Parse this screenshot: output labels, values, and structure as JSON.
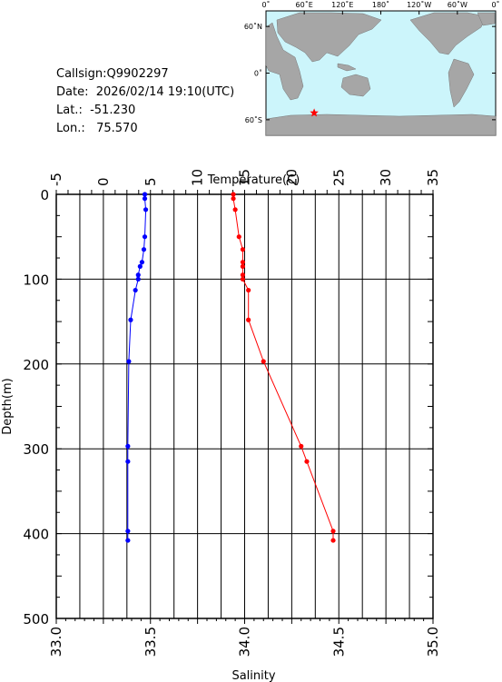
{
  "info": {
    "callsign": "Callsign:Q9902297",
    "date": "Date:  2026/02/14 19:10(UTC)",
    "lat": "Lat.:  -51.230",
    "lon": "Lon.:   75.570"
  },
  "map": {
    "lon_labels": [
      "0˚",
      "60˚E",
      "120˚E",
      "180˚",
      "120˚W",
      "60˚W",
      "0˚"
    ],
    "lat_labels": [
      "60˚N",
      "0˚",
      "60˚S"
    ],
    "marker": {
      "lat": -51.23,
      "lon": 75.57
    },
    "colors": {
      "ocean": "#ccf5fb",
      "land": "#a6a6a6",
      "marker": "#ff0000"
    }
  },
  "chart_data": {
    "type": "line",
    "ylabel": "Depth(m)",
    "ylim": [
      0,
      500
    ],
    "y_ticks": [
      "0",
      "100",
      "200",
      "300",
      "400",
      "500"
    ],
    "top_axis": {
      "label": "Temperature(C)",
      "lim": [
        -5,
        35
      ],
      "ticks": [
        "-5",
        "0",
        "5",
        "10",
        "15",
        "20",
        "25",
        "30",
        "35"
      ]
    },
    "bottom_axis": {
      "label": "Salinity",
      "lim": [
        33.0,
        35.0
      ],
      "ticks": [
        "33.0",
        "33.5",
        "34.0",
        "34.5",
        "35.0"
      ]
    },
    "grid": true,
    "series": [
      {
        "axis": "temperature",
        "color": "#0000ff",
        "points": [
          {
            "depth": 0,
            "value": 4.4
          },
          {
            "depth": 5,
            "value": 4.4
          },
          {
            "depth": 18,
            "value": 4.5
          },
          {
            "depth": 50,
            "value": 4.4
          },
          {
            "depth": 65,
            "value": 4.3
          },
          {
            "depth": 80,
            "value": 4.1
          },
          {
            "depth": 85,
            "value": 3.9
          },
          {
            "depth": 95,
            "value": 3.7
          },
          {
            "depth": 100,
            "value": 3.7
          },
          {
            "depth": 113,
            "value": 3.4
          },
          {
            "depth": 148,
            "value": 2.9
          },
          {
            "depth": 197,
            "value": 2.7
          },
          {
            "depth": 297,
            "value": 2.6
          },
          {
            "depth": 315,
            "value": 2.6
          },
          {
            "depth": 397,
            "value": 2.6
          },
          {
            "depth": 408,
            "value": 2.6
          }
        ]
      },
      {
        "axis": "salinity",
        "color": "#ff0000",
        "points": [
          {
            "depth": 0,
            "value": 33.94
          },
          {
            "depth": 5,
            "value": 33.94
          },
          {
            "depth": 18,
            "value": 33.95
          },
          {
            "depth": 50,
            "value": 33.97
          },
          {
            "depth": 65,
            "value": 33.99
          },
          {
            "depth": 80,
            "value": 33.99
          },
          {
            "depth": 85,
            "value": 33.99
          },
          {
            "depth": 95,
            "value": 33.99
          },
          {
            "depth": 100,
            "value": 33.99
          },
          {
            "depth": 113,
            "value": 34.02
          },
          {
            "depth": 148,
            "value": 34.02
          },
          {
            "depth": 197,
            "value": 34.1
          },
          {
            "depth": 297,
            "value": 34.3
          },
          {
            "depth": 315,
            "value": 34.33
          },
          {
            "depth": 397,
            "value": 34.47
          },
          {
            "depth": 408,
            "value": 34.47
          }
        ]
      }
    ]
  }
}
